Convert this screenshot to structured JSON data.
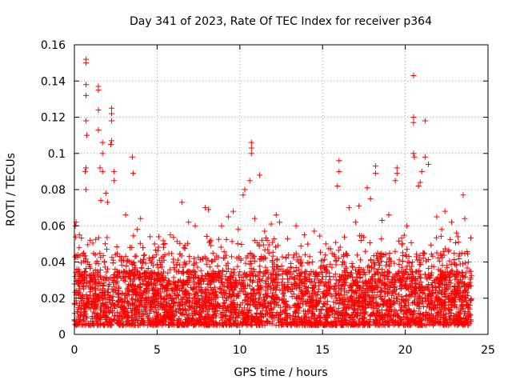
{
  "chart_data": {
    "type": "scatter",
    "title": "Day 341 of 2023, Rate Of TEC Index for receiver p364",
    "xlabel": "GPS time / hours",
    "ylabel": "ROTI / TECUs",
    "xlim": [
      0,
      25
    ],
    "ylim": [
      0,
      0.16
    ],
    "xticks": [
      0,
      5,
      10,
      15,
      20,
      25
    ],
    "xtick_labels": [
      "0",
      "5",
      "10",
      "15",
      "20",
      "25"
    ],
    "yticks": [
      0,
      0.02,
      0.04,
      0.06,
      0.08,
      0.1,
      0.12,
      0.14,
      0.16
    ],
    "ytick_labels": [
      "0",
      "0.02",
      "0.04",
      "0.06",
      "0.08",
      "0.1",
      "0.12",
      "0.14",
      "0.16"
    ],
    "grid": true,
    "marker": "+",
    "marker_color": "#ff0000",
    "x_range_of_data": [
      0,
      24
    ],
    "dense_band_y": [
      0.005,
      0.035
    ],
    "points": [
      {
        "x": 0.7,
        "y": 0.152
      },
      {
        "x": 0.7,
        "y": 0.15
      },
      {
        "x": 0.7,
        "y": 0.138
      },
      {
        "x": 0.7,
        "y": 0.132
      },
      {
        "x": 0.7,
        "y": 0.118
      },
      {
        "x": 0.75,
        "y": 0.11
      },
      {
        "x": 0.7,
        "y": 0.092
      },
      {
        "x": 0.65,
        "y": 0.09
      },
      {
        "x": 0.7,
        "y": 0.08
      },
      {
        "x": 1.45,
        "y": 0.137
      },
      {
        "x": 1.45,
        "y": 0.135
      },
      {
        "x": 1.45,
        "y": 0.124
      },
      {
        "x": 1.45,
        "y": 0.113
      },
      {
        "x": 1.7,
        "y": 0.106
      },
      {
        "x": 1.7,
        "y": 0.1
      },
      {
        "x": 1.55,
        "y": 0.092
      },
      {
        "x": 1.7,
        "y": 0.09
      },
      {
        "x": 2.25,
        "y": 0.125
      },
      {
        "x": 2.25,
        "y": 0.122
      },
      {
        "x": 2.25,
        "y": 0.118
      },
      {
        "x": 2.25,
        "y": 0.107
      },
      {
        "x": 2.2,
        "y": 0.105
      },
      {
        "x": 2.4,
        "y": 0.09
      },
      {
        "x": 2.4,
        "y": 0.085
      },
      {
        "x": 3.5,
        "y": 0.098
      },
      {
        "x": 3.55,
        "y": 0.089
      },
      {
        "x": 0.1,
        "y": 0.062
      },
      {
        "x": 0.05,
        "y": 0.06
      },
      {
        "x": 10.7,
        "y": 0.106
      },
      {
        "x": 10.7,
        "y": 0.103
      },
      {
        "x": 10.7,
        "y": 0.1
      },
      {
        "x": 10.6,
        "y": 0.085
      },
      {
        "x": 10.3,
        "y": 0.08
      },
      {
        "x": 10.2,
        "y": 0.077
      },
      {
        "x": 11.2,
        "y": 0.088
      },
      {
        "x": 16.0,
        "y": 0.096
      },
      {
        "x": 16.0,
        "y": 0.09
      },
      {
        "x": 15.9,
        "y": 0.082
      },
      {
        "x": 18.2,
        "y": 0.093
      },
      {
        "x": 18.2,
        "y": 0.089
      },
      {
        "x": 17.7,
        "y": 0.081
      },
      {
        "x": 17.9,
        "y": 0.075
      },
      {
        "x": 19.5,
        "y": 0.092
      },
      {
        "x": 19.5,
        "y": 0.089
      },
      {
        "x": 19.4,
        "y": 0.085
      },
      {
        "x": 20.5,
        "y": 0.143
      },
      {
        "x": 20.5,
        "y": 0.12
      },
      {
        "x": 20.5,
        "y": 0.117
      },
      {
        "x": 20.5,
        "y": 0.1
      },
      {
        "x": 20.55,
        "y": 0.098
      },
      {
        "x": 21.2,
        "y": 0.118
      },
      {
        "x": 21.2,
        "y": 0.098
      },
      {
        "x": 21.4,
        "y": 0.094
      },
      {
        "x": 21.0,
        "y": 0.09
      },
      {
        "x": 20.9,
        "y": 0.084
      },
      {
        "x": 20.8,
        "y": 0.082
      },
      {
        "x": 23.5,
        "y": 0.077
      },
      {
        "x": 22.4,
        "y": 0.068
      },
      {
        "x": 23.6,
        "y": 0.064
      },
      {
        "x": 6.5,
        "y": 0.073
      },
      {
        "x": 7.9,
        "y": 0.07
      },
      {
        "x": 8.1,
        "y": 0.069
      },
      {
        "x": 12.2,
        "y": 0.066
      },
      {
        "x": 12.4,
        "y": 0.062
      },
      {
        "x": 4.0,
        "y": 0.064
      },
      {
        "x": 3.1,
        "y": 0.066
      },
      {
        "x": 1.9,
        "y": 0.078
      },
      {
        "x": 2.0,
        "y": 0.073
      },
      {
        "x": 1.6,
        "y": 0.074
      },
      {
        "x": 9.3,
        "y": 0.065
      },
      {
        "x": 9.6,
        "y": 0.068
      },
      {
        "x": 13.4,
        "y": 0.06
      },
      {
        "x": 14.5,
        "y": 0.057
      },
      {
        "x": 16.6,
        "y": 0.07
      },
      {
        "x": 17.2,
        "y": 0.071
      },
      {
        "x": 22.8,
        "y": 0.062
      },
      {
        "x": 5.1,
        "y": 0.054
      },
      {
        "x": 5.8,
        "y": 0.055
      },
      {
        "x": 8.9,
        "y": 0.06
      },
      {
        "x": 11.9,
        "y": 0.061
      },
      {
        "x": 15.2,
        "y": 0.05
      },
      {
        "x": 19.0,
        "y": 0.066
      },
      {
        "x": 21.9,
        "y": 0.065
      },
      {
        "x": 0.3,
        "y": 0.055
      },
      {
        "x": 3.8,
        "y": 0.058
      },
      {
        "x": 6.9,
        "y": 0.062
      },
      {
        "x": 7.3,
        "y": 0.06
      },
      {
        "x": 9.9,
        "y": 0.058
      },
      {
        "x": 10.9,
        "y": 0.064
      },
      {
        "x": 11.5,
        "y": 0.057
      },
      {
        "x": 13.9,
        "y": 0.055
      },
      {
        "x": 17.0,
        "y": 0.062
      },
      {
        "x": 18.6,
        "y": 0.063
      },
      {
        "x": 20.1,
        "y": 0.06
      },
      {
        "x": 22.2,
        "y": 0.058
      },
      {
        "x": 23.1,
        "y": 0.056
      }
    ]
  }
}
